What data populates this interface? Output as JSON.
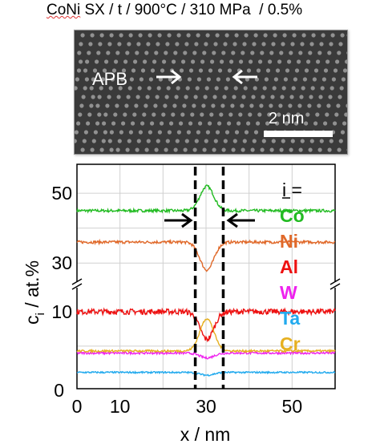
{
  "header": {
    "alloy": "CoNi",
    "rest": " SX / t / 900°C / 310 MPa  / 0.5%"
  },
  "micrograph": {
    "label": "APB",
    "scale_bar": "2 nm",
    "colors": {
      "background": "#3a3a3a",
      "atom": "#d8d8d8",
      "annotation": "#ffffff"
    }
  },
  "chart_data": {
    "type": "line",
    "xlabel": "x / nm",
    "ylabel_main": "c",
    "ylabel_sub": "i",
    "ylabel_rest": " / at.%",
    "xlim": [
      0,
      60
    ],
    "x_ticks": [
      "0",
      "10",
      "30",
      "50"
    ],
    "x_tick_values": [
      0,
      10,
      30,
      50
    ],
    "y_ticks_upper": [
      "50",
      "30"
    ],
    "y_tick_upper_values": [
      50,
      30
    ],
    "y_ticks_lower": [
      "10"
    ],
    "y_tick_lower_values": [
      10
    ],
    "ylim_upper": [
      25,
      56
    ],
    "ylim_lower": [
      0,
      13
    ],
    "axis_break": true,
    "grid": true,
    "apb_boundaries_x": [
      27.5,
      34
    ],
    "legend_header": "i =",
    "series": [
      {
        "name": "Co",
        "color": "#22bb22",
        "base": 45,
        "feature": "peak",
        "feature_value": 52,
        "noise": 0.4
      },
      {
        "name": "Ni",
        "color": "#e0692a",
        "base": 36,
        "feature": "dip",
        "feature_value": 28,
        "noise": 0.4
      },
      {
        "name": "Al",
        "color": "#ee1111",
        "base": 10,
        "feature": "dip",
        "feature_value": 6,
        "noise": 0.4
      },
      {
        "name": "W",
        "color": "#ee22ee",
        "base": 4,
        "feature": "dip",
        "feature_value": 3.3,
        "noise": 0.15
      },
      {
        "name": "Ta",
        "color": "#22aaee",
        "base": 1.2,
        "feature": "dip",
        "feature_value": 0.8,
        "noise": 0.12
      },
      {
        "name": "Cr",
        "color": "#e6b020",
        "base": 4.3,
        "feature": "peak",
        "feature_value": 9,
        "noise": 0.15
      }
    ]
  }
}
